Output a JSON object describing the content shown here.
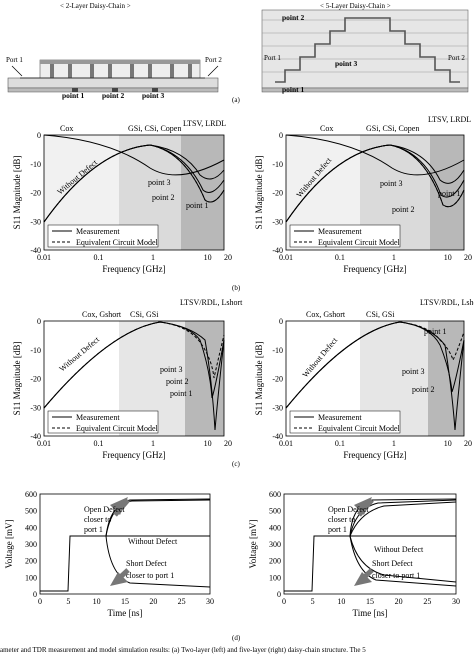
{
  "panel_a": {
    "left_title": "< 2-Layer Daisy-Chain >",
    "right_title": "< 5-Layer Daisy-Chain >",
    "port1": "Port 1",
    "port2": "Port 2",
    "left_points": [
      "point 1",
      "point 2",
      "point 3"
    ],
    "right_points": [
      "point 2",
      "point 3",
      "point 1"
    ],
    "label": "(a)"
  },
  "panel_b_label": "(b)",
  "panel_c_label": "(c)",
  "panel_d_label": "(d)",
  "caption_fragment": "ameter and TDR measurement and model simulation results: (a) Two-layer (left) and five-layer (right) daisy-chain structure. The 5",
  "legend": {
    "measurement": "Measurement",
    "model": "Equivalent Circuit Model"
  },
  "sparam_axes": {
    "xlabel": "Frequency [GHz]",
    "ylabel": "S11 Magnitude [dB]",
    "xticks": [
      "0.01",
      "0.1",
      "1",
      "10",
      "20"
    ],
    "yticks": [
      "0",
      "-10",
      "-20",
      "-30",
      "-40"
    ]
  },
  "tdr_axes": {
    "xlabel": "Time [ns]",
    "ylabel": "Voltage [mV]",
    "xticks": [
      "0",
      "5",
      "10",
      "15",
      "20",
      "25",
      "30"
    ],
    "yticks": [
      "0",
      "100",
      "200",
      "300",
      "400",
      "500",
      "600"
    ]
  },
  "b_annotations": {
    "region1": "Cox",
    "region2": "GSi, CSi, Copen",
    "region3": "LTSV, LRDL",
    "without_defect": "Without Defect",
    "point1": "point 1",
    "point2": "point 2",
    "point3": "point 3"
  },
  "c_annotations": {
    "region1": "Cox, Gshort",
    "region2": "CSi, GSi",
    "region3": "LTSV/RDL, Lshort",
    "without_defect": "Without Defect",
    "point1": "point 1",
    "point2": "point 2",
    "point3": "point 3"
  },
  "d_annotations": {
    "open": [
      "Open Defect",
      "closer to",
      "port 1"
    ],
    "without": "Without Defect",
    "short": [
      "Short Defect",
      "closer to port 1"
    ]
  },
  "chart_data": [
    {
      "id": "b-left",
      "type": "line",
      "x_scale": "log",
      "xlim": [
        0.01,
        20
      ],
      "ylim": [
        -40,
        0
      ],
      "series": [
        {
          "name": "Measurement",
          "x": [
            0.01,
            0.03,
            0.1,
            0.3,
            1,
            3,
            10,
            20
          ],
          "y": [
            -30,
            -22,
            -12,
            -5,
            -2,
            -8,
            -14,
            -12
          ]
        },
        {
          "name": "Equivalent Circuit Model",
          "x": [
            0.01,
            0.03,
            0.1,
            0.3,
            1,
            3,
            10,
            20
          ],
          "y": [
            -30,
            -22,
            -12,
            -5,
            -2,
            -8,
            -14,
            -12
          ]
        }
      ]
    },
    {
      "id": "b-right",
      "type": "line",
      "x_scale": "log",
      "xlim": [
        0.01,
        20
      ],
      "ylim": [
        -40,
        0
      ],
      "series": [
        {
          "name": "Measurement",
          "x": [
            0.01,
            0.03,
            0.1,
            0.3,
            1,
            3,
            10,
            20
          ],
          "y": [
            -30,
            -22,
            -12,
            -5,
            -2,
            -9,
            -15,
            -13
          ]
        },
        {
          "name": "Equivalent Circuit Model",
          "x": [
            0.01,
            0.03,
            0.1,
            0.3,
            1,
            3,
            10,
            20
          ],
          "y": [
            -30,
            -22,
            -12,
            -5,
            -2,
            -9,
            -15,
            -13
          ]
        }
      ]
    },
    {
      "id": "c-left",
      "type": "line",
      "x_scale": "log",
      "xlim": [
        0.01,
        20
      ],
      "ylim": [
        -40,
        0
      ],
      "series": [
        {
          "name": "Measurement",
          "x": [
            0.01,
            0.03,
            0.1,
            0.3,
            1,
            3,
            10,
            20
          ],
          "y": [
            -30,
            -22,
            -12,
            -4,
            -1,
            -0.5,
            -3,
            -25
          ]
        },
        {
          "name": "Equivalent Circuit Model",
          "x": [
            0.01,
            0.03,
            0.1,
            0.3,
            1,
            3,
            10,
            20
          ],
          "y": [
            -30,
            -22,
            -12,
            -4,
            -1,
            -0.5,
            -3,
            -25
          ]
        }
      ]
    },
    {
      "id": "c-right",
      "type": "line",
      "x_scale": "log",
      "xlim": [
        0.01,
        20
      ],
      "ylim": [
        -40,
        0
      ],
      "series": [
        {
          "name": "Measurement",
          "x": [
            0.01,
            0.03,
            0.1,
            0.3,
            1,
            3,
            10,
            20
          ],
          "y": [
            -30,
            -22,
            -12,
            -4,
            -1,
            -0.5,
            -4,
            -28
          ]
        },
        {
          "name": "Equivalent Circuit Model",
          "x": [
            0.01,
            0.03,
            0.1,
            0.3,
            1,
            3,
            10,
            20
          ],
          "y": [
            -30,
            -22,
            -12,
            -4,
            -1,
            -0.5,
            -4,
            -28
          ]
        }
      ]
    },
    {
      "id": "d-left",
      "type": "line",
      "xlim": [
        0,
        30
      ],
      "ylim": [
        0,
        600
      ],
      "series": [
        {
          "x": [
            0,
            4,
            4.3,
            12,
            12.5,
            14,
            30
          ],
          "y": [
            0,
            0,
            250,
            250,
            400,
            480,
            500
          ]
        },
        {
          "x": [
            0,
            4,
            4.3,
            12,
            14,
            30
          ],
          "y": [
            0,
            0,
            250,
            250,
            250,
            250
          ]
        },
        {
          "x": [
            0,
            4,
            4.3,
            12,
            12.5,
            14,
            30
          ],
          "y": [
            0,
            0,
            250,
            250,
            60,
            20,
            20
          ]
        }
      ]
    },
    {
      "id": "d-right",
      "type": "line",
      "xlim": [
        0,
        30
      ],
      "ylim": [
        0,
        600
      ],
      "series": [
        {
          "x": [
            0,
            4,
            4.3,
            12,
            12.5,
            14,
            30
          ],
          "y": [
            0,
            0,
            250,
            250,
            400,
            490,
            500
          ]
        },
        {
          "x": [
            0,
            4,
            4.3,
            12,
            14,
            30
          ],
          "y": [
            0,
            0,
            250,
            250,
            250,
            250
          ]
        },
        {
          "x": [
            0,
            4,
            4.3,
            12,
            12.5,
            14,
            30
          ],
          "y": [
            0,
            0,
            250,
            250,
            60,
            20,
            20
          ]
        }
      ]
    }
  ]
}
